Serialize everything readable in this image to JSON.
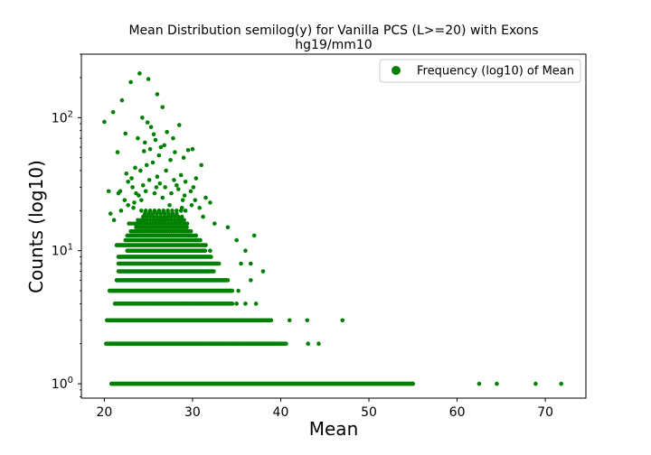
{
  "chart_data": {
    "type": "scatter",
    "title": "Mean Distribution semilog(y) for Vanilla PCS (L>=20) with Exons",
    "subtitle": "hg19/mm10",
    "xlabel": "Mean",
    "ylabel": "Counts (log10)",
    "xlim": [
      17.4,
      74.6
    ],
    "ylim": [
      0.78,
      300
    ],
    "yscale": "log",
    "x_ticks": [
      20,
      30,
      40,
      50,
      60,
      70
    ],
    "x_tick_labels": [
      "20",
      "30",
      "40",
      "50",
      "60",
      "70"
    ],
    "y_ticks": [
      1,
      10,
      100
    ],
    "y_tick_labels": [
      "10^0",
      "10^1",
      "10^2"
    ],
    "grid": false,
    "legend_position": "top-right",
    "series": [
      {
        "name": "Frequency (log10) of Mean",
        "color": "#008000",
        "bands": [
          {
            "y": 1,
            "x_start": 20.8,
            "x_end": 55.0,
            "step": 0.1
          },
          {
            "y": 2,
            "x_start": 20.2,
            "x_end": 40.6,
            "step": 0.1
          },
          {
            "y": 3,
            "x_start": 20.3,
            "x_end": 39.0,
            "step": 0.12
          },
          {
            "y": 4,
            "x_start": 21.2,
            "x_end": 34.6,
            "step": 0.12
          },
          {
            "y": 5,
            "x_start": 20.6,
            "x_end": 34.4,
            "step": 0.12
          },
          {
            "y": 6,
            "x_start": 21.4,
            "x_end": 34.0,
            "step": 0.12
          },
          {
            "y": 7,
            "x_start": 21.6,
            "x_end": 32.4,
            "step": 0.12
          },
          {
            "y": 8,
            "x_start": 21.6,
            "x_end": 33.0,
            "step": 0.12
          },
          {
            "y": 9,
            "x_start": 21.6,
            "x_end": 32.2,
            "step": 0.14
          },
          {
            "y": 10,
            "x_start": 22.6,
            "x_end": 31.5,
            "step": 0.14
          },
          {
            "y": 11,
            "x_start": 21.4,
            "x_end": 31.5,
            "step": 0.16
          },
          {
            "y": 12,
            "x_start": 22.4,
            "x_end": 31.0,
            "step": 0.16
          },
          {
            "y": 13,
            "x_start": 22.6,
            "x_end": 30.5,
            "step": 0.2
          },
          {
            "y": 14,
            "x_start": 23.0,
            "x_end": 30.0,
            "step": 0.22
          },
          {
            "y": 15,
            "x_start": 23.6,
            "x_end": 29.5,
            "step": 0.25
          },
          {
            "y": 16,
            "x_start": 22.8,
            "x_end": 29.4,
            "step": 0.3
          },
          {
            "y": 17,
            "x_start": 23.8,
            "x_end": 29.3,
            "step": 0.35
          },
          {
            "y": 18,
            "x_start": 24.4,
            "x_end": 29.0,
            "step": 0.4
          },
          {
            "y": 19,
            "x_start": 24.6,
            "x_end": 28.6,
            "step": 0.45
          },
          {
            "y": 20,
            "x_start": 24.2,
            "x_end": 29.6,
            "step": 0.5
          }
        ],
        "points": [
          [
            62.5,
            1
          ],
          [
            64.5,
            1
          ],
          [
            68.9,
            1
          ],
          [
            71.8,
            1
          ],
          [
            41.0,
            3
          ],
          [
            43.0,
            3
          ],
          [
            47.0,
            3
          ],
          [
            43.1,
            2
          ],
          [
            44.3,
            2
          ],
          [
            38.9,
            3
          ],
          [
            35.0,
            4
          ],
          [
            36.0,
            4
          ],
          [
            37.2,
            4
          ],
          [
            34.5,
            5
          ],
          [
            35.2,
            5
          ],
          [
            36.6,
            6
          ],
          [
            38.0,
            7
          ],
          [
            35.5,
            8
          ],
          [
            36.6,
            8
          ],
          [
            37.0,
            13
          ],
          [
            34.0,
            15
          ],
          [
            36.0,
            10
          ],
          [
            35.0,
            12
          ],
          [
            31.3,
            9
          ],
          [
            32.0,
            10
          ],
          [
            30.5,
            12
          ],
          [
            31.5,
            11
          ],
          [
            20.0,
            93
          ],
          [
            21.0,
            110
          ],
          [
            21.5,
            55
          ],
          [
            22.0,
            135
          ],
          [
            23.0,
            185
          ],
          [
            23.2,
            30
          ],
          [
            24.0,
            215
          ],
          [
            24.3,
            100
          ],
          [
            25.0,
            195
          ],
          [
            26.0,
            150
          ],
          [
            24.6,
            65
          ],
          [
            25.2,
            58
          ],
          [
            25.8,
            68
          ],
          [
            26.4,
            60
          ],
          [
            26.6,
            120
          ],
          [
            27.1,
            78
          ],
          [
            28.0,
            55
          ],
          [
            29.0,
            50
          ],
          [
            30.0,
            58
          ],
          [
            29.5,
            57
          ],
          [
            28.5,
            88
          ],
          [
            30.4,
            35
          ],
          [
            31.0,
            44
          ],
          [
            31.5,
            25
          ],
          [
            32.0,
            23
          ],
          [
            27.5,
            48
          ],
          [
            26.2,
            52
          ],
          [
            25.5,
            46
          ],
          [
            24.8,
            44
          ],
          [
            24.1,
            40
          ],
          [
            23.5,
            42
          ],
          [
            22.5,
            38
          ],
          [
            21.8,
            28
          ],
          [
            20.5,
            28
          ],
          [
            22.7,
            33
          ],
          [
            23.1,
            35
          ],
          [
            21.1,
            17
          ],
          [
            21.9,
            20
          ],
          [
            20.7,
            19
          ],
          [
            21.6,
            27
          ],
          [
            22.3,
            24
          ],
          [
            28.2,
            31
          ],
          [
            29.2,
            33
          ],
          [
            30.1,
            30
          ],
          [
            31.2,
            18
          ],
          [
            32.5,
            16
          ],
          [
            26.8,
            62
          ],
          [
            25.6,
            75
          ],
          [
            24.9,
            92
          ],
          [
            23.8,
            70
          ],
          [
            22.4,
            76
          ],
          [
            27.8,
            70
          ],
          [
            25.3,
            85
          ],
          [
            24.5,
            56
          ],
          [
            27.0,
            40
          ],
          [
            26.0,
            36
          ],
          [
            28.7,
            37
          ],
          [
            29.8,
            28
          ],
          [
            30.8,
            21
          ],
          [
            28.9,
            24
          ],
          [
            27.4,
            22
          ],
          [
            26.6,
            25
          ],
          [
            25.9,
            30
          ],
          [
            24.7,
            28
          ],
          [
            23.9,
            26
          ],
          [
            23.3,
            21
          ],
          [
            22.7,
            22
          ],
          [
            30.3,
            24
          ],
          [
            29.1,
            26
          ],
          [
            27.6,
            27
          ],
          [
            26.3,
            32
          ],
          [
            25.1,
            34
          ],
          [
            24.4,
            31
          ],
          [
            23.6,
            27
          ],
          [
            28.4,
            29
          ],
          [
            27.9,
            34
          ],
          [
            26.9,
            30
          ],
          [
            25.7,
            27
          ],
          [
            24.2,
            24
          ],
          [
            23.4,
            23
          ],
          [
            29.9,
            22
          ],
          [
            28.8,
            21
          ]
        ]
      }
    ]
  }
}
